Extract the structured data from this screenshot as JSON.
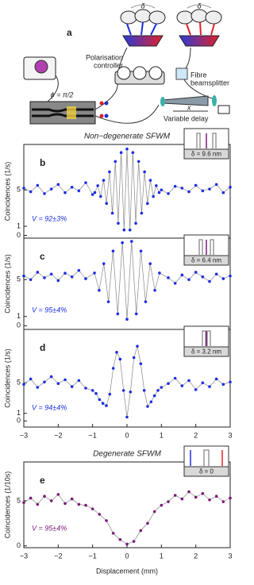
{
  "diagram": {
    "label": "a",
    "phase": "ϕ = π/2",
    "controller": [
      "Polarisation",
      "controller"
    ],
    "beamsplitter": [
      "Fibre",
      "beamsplitter"
    ],
    "delay": "Variable delay",
    "displacement": "x",
    "spread": [
      "δ",
      "δ"
    ]
  },
  "chart_data": [
    {
      "type": "scatter",
      "panel": "b",
      "title": "Non−degenerate SFWM",
      "ylabel": "Coincidences (1/s)",
      "annotation": "V = 92±3%",
      "inset_label": "δ = 9.6 nm",
      "color": "#1c2ee6",
      "xlim": [
        -3,
        3
      ],
      "ylim": [
        -0.3,
        10
      ],
      "yticks": [
        0,
        1,
        5
      ],
      "x": [
        -3,
        -2.8,
        -2.6,
        -2.4,
        -2.2,
        -2,
        -1.8,
        -1.6,
        -1.4,
        -1.2,
        -1,
        -0.935,
        -0.85,
        -0.765,
        -0.68,
        -0.595,
        -0.51,
        -0.425,
        -0.34,
        -0.255,
        -0.17,
        -0.085,
        0,
        0.085,
        0.17,
        0.255,
        0.34,
        0.425,
        0.51,
        0.595,
        0.68,
        0.765,
        0.85,
        0.935,
        1,
        1.2,
        1.4,
        1.6,
        1.8,
        2,
        2.2,
        2.4,
        2.6,
        2.8,
        3
      ],
      "values": [
        5.2,
        4.8,
        5.5,
        4.6,
        5.1,
        5.6,
        4.7,
        5.3,
        4.9,
        5.8,
        4.5,
        4.71,
        5.47,
        4.28,
        6.06,
        3.51,
        6.99,
        2.44,
        8.13,
        1.33,
        9.11,
        0.6,
        9.5,
        0.6,
        9.11,
        1.33,
        8.13,
        2.44,
        6.99,
        3.51,
        6.06,
        4.28,
        5.47,
        4.71,
        5.0,
        4.6,
        5.4,
        5.2,
        4.8,
        5.5,
        4.9,
        5.1,
        5.6,
        4.7,
        5.3
      ]
    },
    {
      "type": "scatter",
      "panel": "c",
      "ylabel": "Coincidences (1/s)",
      "annotation": "V = 95±4%",
      "inset_label": "δ = 6.4 nm",
      "color": "#1c2ee6",
      "xlim": [
        -3,
        3
      ],
      "ylim": [
        -0.4,
        9.5
      ],
      "yticks": [
        0,
        1,
        5
      ],
      "x": [
        -3,
        -2.8,
        -2.6,
        -2.4,
        -2.2,
        -2,
        -1.8,
        -1.6,
        -1.4,
        -1.2,
        -0.945,
        -0.81,
        -0.675,
        -0.54,
        -0.405,
        -0.27,
        -0.135,
        0,
        0.135,
        0.27,
        0.405,
        0.54,
        0.675,
        0.81,
        0.945,
        1.2,
        1.4,
        1.6,
        1.8,
        2,
        2.2,
        2.4,
        2.6,
        2.8,
        3
      ],
      "values": [
        5.4,
        5.0,
        5.8,
        5.2,
        5.6,
        4.9,
        5.7,
        5.3,
        6.0,
        5.1,
        5.72,
        3.84,
        6.73,
        2.6,
        8.1,
        1.28,
        9.0,
        0.7,
        9.15,
        1.28,
        8.1,
        2.6,
        6.73,
        3.84,
        5.72,
        5.2,
        4.6,
        5.5,
        5.0,
        5.8,
        5.3,
        4.8,
        5.6,
        5.1,
        5.4
      ]
    },
    {
      "type": "scatter",
      "panel": "d",
      "ylabel": "Coincidences (1/s)",
      "annotation": "V = 94±4%",
      "inset_label": "δ = 3.2 nm",
      "color": "#1c2ee6",
      "xlim": [
        -3,
        3
      ],
      "ylim": [
        -0.8,
        12
      ],
      "yticks": [
        0,
        1,
        5
      ],
      "xticks": [
        {
          "value": -3,
          "label": "−3"
        },
        {
          "value": -2,
          "label": "−2"
        },
        {
          "value": -1,
          "label": "−1"
        },
        0,
        1,
        2,
        3
      ],
      "x": [
        -3,
        -2.8,
        -2.6,
        -2.4,
        -2.2,
        -2,
        -1.8,
        -1.6,
        -1.4,
        -1.2,
        -1,
        -0.9,
        -0.8,
        -0.7,
        -0.6,
        -0.5,
        -0.4,
        -0.3,
        -0.2,
        -0.1,
        0,
        0.1,
        0.2,
        0.3,
        0.4,
        0.5,
        0.6,
        0.7,
        0.8,
        0.9,
        1,
        1.2,
        1.4,
        1.6,
        1.8,
        2,
        2.2,
        2.4,
        2.6,
        2.8,
        3
      ],
      "values": [
        4.8,
        5.5,
        4.4,
        5.1,
        5.8,
        4.9,
        5.4,
        4.5,
        5.3,
        4.3,
        4.0,
        3.6,
        2.8,
        2.3,
        2.0,
        3.5,
        6.9,
        9.0,
        8.1,
        4.0,
        0.5,
        3.8,
        8.3,
        9.8,
        7.5,
        4.0,
        1.9,
        2.5,
        3.3,
        4.0,
        4.4,
        4.9,
        5.6,
        4.6,
        5.3,
        4.1,
        5.0,
        4.5,
        5.5,
        4.8,
        5.1
      ]
    },
    {
      "type": "scatter",
      "panel": "e",
      "title": "Degenerate SFWM",
      "ylabel": "Coincidences (1/10s)",
      "xlabel": "Displacement (mm)",
      "annotation": "V = 95±4%",
      "inset_label": "δ = 0",
      "color": "#7a1a78",
      "xlim": [
        -3,
        3
      ],
      "ylim": [
        -0.2,
        9.3
      ],
      "yticks": [
        0,
        5
      ],
      "xticks": [
        {
          "value": -3,
          "label": "−3"
        },
        {
          "value": -2,
          "label": "−2"
        },
        {
          "value": -1,
          "label": "−1"
        },
        0,
        1,
        2,
        3
      ],
      "x": [
        -3,
        -2.8,
        -2.6,
        -2.4,
        -2.2,
        -2,
        -1.8,
        -1.6,
        -1.4,
        -1.2,
        -1,
        -0.8,
        -0.6,
        -0.4,
        -0.2,
        0,
        0.2,
        0.4,
        0.6,
        0.8,
        1,
        1.2,
        1.4,
        1.6,
        1.8,
        2,
        2.2,
        2.4,
        2.6,
        2.8,
        3
      ],
      "values": [
        4.8,
        5.3,
        4.6,
        5.5,
        5.0,
        5.7,
        4.7,
        5.2,
        4.6,
        4.5,
        4.1,
        3.5,
        2.8,
        1.4,
        0.7,
        0.2,
        0.5,
        1.7,
        2.5,
        3.8,
        4.5,
        4.9,
        5.6,
        5.2,
        6.0,
        5.4,
        5.8,
        5.1,
        5.5,
        4.9,
        5.3
      ]
    }
  ]
}
